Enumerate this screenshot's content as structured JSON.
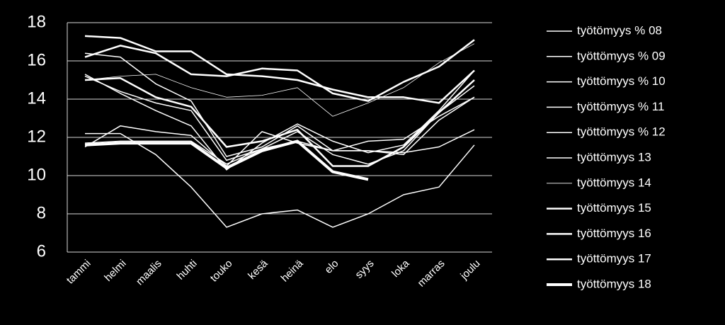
{
  "chart_data": {
    "type": "line",
    "categories": [
      "tammi",
      "helmi",
      "maalis",
      "huhti",
      "touko",
      "kesä",
      "heinä",
      "elo",
      "syys",
      "loka",
      "marras",
      "joulu"
    ],
    "ylim": [
      6,
      18
    ],
    "yticks": [
      6,
      8,
      10,
      12,
      14,
      16,
      18
    ],
    "grid": true,
    "legend": "right",
    "series": [
      {
        "name": "työtömyys % 08",
        "color": "#ffffff",
        "width": 1.5,
        "values": [
          12.2,
          12.2,
          11.1,
          9.4,
          7.3,
          8.0,
          8.2,
          7.3,
          8.0,
          9.0,
          9.4,
          11.6
        ]
      },
      {
        "name": "työttömyys % 09",
        "color": "#ffffff",
        "width": 1.5,
        "values": [
          11.5,
          12.6,
          12.3,
          12.1,
          10.5,
          12.3,
          11.7,
          11.3,
          11.8,
          11.9,
          13.1,
          14.1
        ]
      },
      {
        "name": "työttömyys % 10",
        "color": "#ffffff",
        "width": 1.5,
        "values": [
          16.4,
          16.2,
          14.8,
          13.9,
          11.0,
          11.5,
          12.6,
          11.3,
          11.3,
          11.1,
          12.9,
          14.1
        ]
      },
      {
        "name": "työttömyys % 11",
        "color": "#ffffff",
        "width": 1.5,
        "values": [
          15.3,
          14.3,
          13.4,
          12.6,
          10.3,
          11.7,
          12.7,
          11.8,
          11.2,
          11.6,
          13.4,
          15.5
        ]
      },
      {
        "name": "työttömyys % 12",
        "color": "#ffffff",
        "width": 1.5,
        "values": [
          15.2,
          14.4,
          13.8,
          13.4,
          10.8,
          11.4,
          12.3,
          11.1,
          10.6,
          11.3,
          13.3,
          14.7
        ]
      },
      {
        "name": "työttömyys 13",
        "color": "#ffffff",
        "width": 1.5,
        "values": [
          11.7,
          11.8,
          11.8,
          11.8,
          10.6,
          11.4,
          11.8,
          11.3,
          11.3,
          11.2,
          11.5,
          12.4
        ]
      },
      {
        "name": "työttömyys 14",
        "color": "#ffffff",
        "width": 0.8,
        "values": [
          15.0,
          15.2,
          15.3,
          14.6,
          14.1,
          14.2,
          14.6,
          13.1,
          13.8,
          14.6,
          15.9,
          16.9
        ]
      },
      {
        "name": "työttömyys 15",
        "color": "#ffffff",
        "width": 2.5,
        "values": [
          17.3,
          17.2,
          16.5,
          16.5,
          15.3,
          15.2,
          15.0,
          14.5,
          14.1,
          14.1,
          13.8,
          15.5
        ]
      },
      {
        "name": "työttömyys 16",
        "color": "#ffffff",
        "width": 2.5,
        "values": [
          16.2,
          16.8,
          16.4,
          15.3,
          15.2,
          15.6,
          15.5,
          14.3,
          13.9,
          14.9,
          15.7,
          17.1
        ]
      },
      {
        "name": "työttömyys 17",
        "color": "#ffffff",
        "width": 2.5,
        "values": [
          15.0,
          15.1,
          14.1,
          13.6,
          11.5,
          11.8,
          12.4,
          10.5,
          10.5,
          11.5,
          13.3,
          15.0
        ]
      },
      {
        "name": "työttömyys 18",
        "color": "#ffffff",
        "width": 4,
        "values": [
          11.6,
          11.7,
          11.7,
          11.7,
          10.4,
          11.3,
          11.8,
          10.2,
          9.8,
          null,
          null,
          null
        ]
      }
    ]
  }
}
